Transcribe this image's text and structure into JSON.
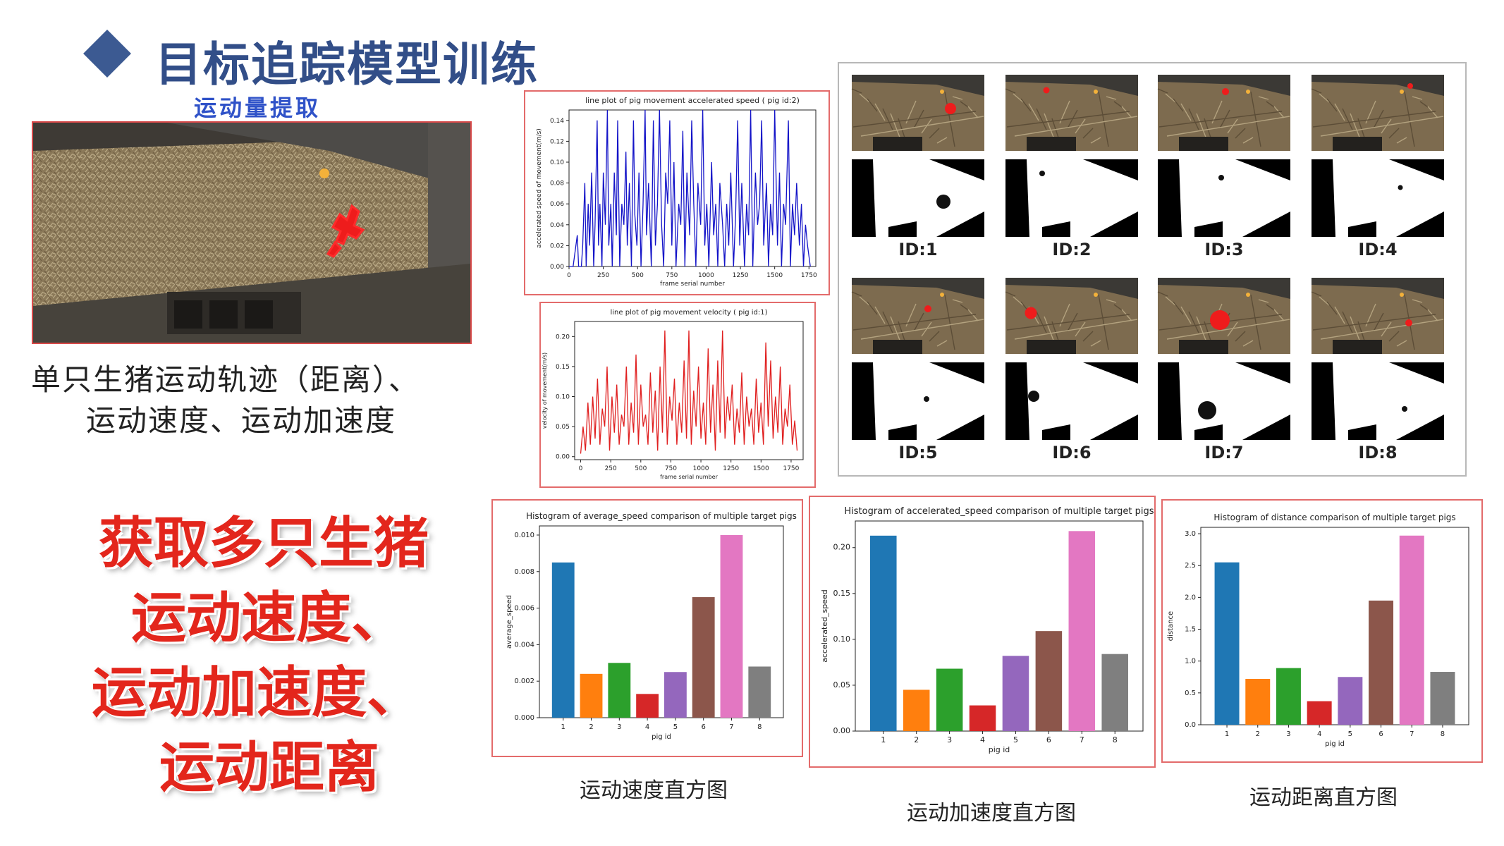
{
  "header": {
    "title": "目标追踪模型训练",
    "subtitle": "运动量提取"
  },
  "left": {
    "caption_line1": "单只生猪运动轨迹（距离）、",
    "caption_line2": "运动速度、运动加速度",
    "highlight_lines": [
      "获取多只生猪",
      "运动速度、",
      "运动加速度、",
      "运动距离"
    ]
  },
  "id_grid": {
    "labels": [
      "ID:1",
      "ID:2",
      "ID:3",
      "ID:4",
      "ID:5",
      "ID:6",
      "ID:7",
      "ID:8"
    ]
  },
  "captions": {
    "avg_speed": "运动速度直方图",
    "acc_speed": "运动加速度直方图",
    "distance": "运动距离直方图"
  },
  "colors": {
    "title": "#324e88",
    "highlight": "#e3261c",
    "panel_border": "#e36b6b",
    "bars": [
      "#1f77b4",
      "#ff7f0e",
      "#2ca02c",
      "#d62728",
      "#9467bd",
      "#8c564b",
      "#e377c2",
      "#7f7f7f"
    ]
  },
  "chart_data": [
    {
      "type": "line",
      "title": "line plot of pig movement accelerated speed ( pig id:2)",
      "xlabel": "frame serial number",
      "ylabel": "accelerated speed of movement(m/s)",
      "xlim": [
        0,
        1800
      ],
      "ylim": [
        0,
        0.15
      ],
      "xticks": [
        0,
        250,
        500,
        750,
        1000,
        1250,
        1500,
        1750
      ],
      "yticks": [
        0.0,
        0.02,
        0.04,
        0.06,
        0.08,
        0.1,
        0.12,
        0.14
      ],
      "ytick_labels": [
        "0.00",
        "0.02",
        "0.04",
        "0.06",
        "0.08",
        "0.10",
        "0.12",
        "0.14"
      ],
      "color": "#1414c8",
      "x": [
        0,
        30,
        60,
        70,
        90,
        100,
        115,
        125,
        140,
        150,
        165,
        180,
        190,
        205,
        215,
        225,
        240,
        250,
        265,
        280,
        290,
        305,
        315,
        330,
        345,
        355,
        370,
        385,
        400,
        415,
        425,
        440,
        455,
        470,
        480,
        495,
        510,
        525,
        540,
        555,
        565,
        580,
        600,
        615,
        630,
        645,
        660,
        675,
        690,
        705,
        720,
        735,
        750,
        765,
        780,
        800,
        815,
        830,
        845,
        860,
        880,
        895,
        910,
        925,
        940,
        960,
        975,
        990,
        1005,
        1020,
        1040,
        1055,
        1070,
        1085,
        1100,
        1120,
        1135,
        1150,
        1165,
        1180,
        1200,
        1215,
        1230,
        1245,
        1260,
        1280,
        1295,
        1310,
        1325,
        1340,
        1360,
        1375,
        1390,
        1405,
        1420,
        1440,
        1455,
        1470,
        1485,
        1500,
        1520,
        1535,
        1550,
        1565,
        1580,
        1600,
        1615,
        1630,
        1645,
        1660,
        1680,
        1695,
        1710,
        1725,
        1740,
        1760
      ],
      "y": [
        0.0,
        0.0,
        0.03,
        0.0,
        0.0,
        0.02,
        0.08,
        0.0,
        0.06,
        0.02,
        0.09,
        0.0,
        0.04,
        0.14,
        0.02,
        0.06,
        0.0,
        0.09,
        0.04,
        0.15,
        0.02,
        0.06,
        0.0,
        0.09,
        0.03,
        0.14,
        0.0,
        0.06,
        0.04,
        0.11,
        0.02,
        0.08,
        0.0,
        0.14,
        0.05,
        0.02,
        0.09,
        0.0,
        0.06,
        0.15,
        0.03,
        0.08,
        0.0,
        0.14,
        0.02,
        0.06,
        0.15,
        0.04,
        0.0,
        0.09,
        0.06,
        0.14,
        0.02,
        0.1,
        0.0,
        0.06,
        0.04,
        0.13,
        0.0,
        0.09,
        0.03,
        0.14,
        0.06,
        0.0,
        0.08,
        0.04,
        0.15,
        0.02,
        0.06,
        0.0,
        0.1,
        0.03,
        0.06,
        0.0,
        0.08,
        0.04,
        0.0,
        0.06,
        0.02,
        0.09,
        0.0,
        0.05,
        0.14,
        0.02,
        0.08,
        0.0,
        0.06,
        0.03,
        0.15,
        0.0,
        0.09,
        0.04,
        0.06,
        0.14,
        0.02,
        0.08,
        0.0,
        0.06,
        0.03,
        0.15,
        0.02,
        0.09,
        0.0,
        0.06,
        0.04,
        0.14,
        0.0,
        0.06,
        0.03,
        0.08,
        0.02,
        0.06,
        0.0,
        0.04,
        0.02,
        0.0
      ]
    },
    {
      "type": "line",
      "title": "line plot of pig movement velocity ( pig id:1)",
      "xlabel": "frame serial number",
      "ylabel": "velocity of movement(m/s)",
      "xlim": [
        -50,
        1850
      ],
      "ylim": [
        -0.005,
        0.225
      ],
      "xticks": [
        0,
        250,
        500,
        750,
        1000,
        1250,
        1500,
        1750
      ],
      "yticks": [
        0.0,
        0.05,
        0.1,
        0.15,
        0.2
      ],
      "ytick_labels": [
        "0.00",
        "0.05",
        "0.10",
        "0.15",
        "0.20"
      ],
      "color": "#e02020",
      "x": [
        0,
        20,
        40,
        60,
        80,
        100,
        120,
        140,
        160,
        180,
        200,
        220,
        240,
        260,
        280,
        300,
        320,
        340,
        360,
        380,
        400,
        420,
        440,
        460,
        480,
        500,
        520,
        540,
        560,
        580,
        600,
        620,
        640,
        660,
        680,
        700,
        720,
        740,
        760,
        780,
        800,
        820,
        840,
        860,
        880,
        900,
        920,
        940,
        960,
        980,
        1000,
        1020,
        1040,
        1060,
        1080,
        1100,
        1120,
        1140,
        1160,
        1180,
        1200,
        1220,
        1240,
        1260,
        1280,
        1300,
        1320,
        1340,
        1360,
        1380,
        1400,
        1420,
        1440,
        1460,
        1480,
        1500,
        1520,
        1540,
        1560,
        1580,
        1600,
        1620,
        1640,
        1660,
        1680,
        1700,
        1720,
        1740,
        1760,
        1780,
        1800
      ],
      "y": [
        0.005,
        0.05,
        0.01,
        0.09,
        0.02,
        0.1,
        0.03,
        0.13,
        0.02,
        0.08,
        0.05,
        0.15,
        0.01,
        0.1,
        0.04,
        0.12,
        0.02,
        0.07,
        0.05,
        0.15,
        0.02,
        0.09,
        0.04,
        0.17,
        0.02,
        0.12,
        0.05,
        0.07,
        0.02,
        0.14,
        0.04,
        0.11,
        0.01,
        0.15,
        0.04,
        0.21,
        0.02,
        0.1,
        0.06,
        0.13,
        0.02,
        0.09,
        0.04,
        0.16,
        0.03,
        0.21,
        0.02,
        0.11,
        0.05,
        0.15,
        0.03,
        0.09,
        0.02,
        0.18,
        0.04,
        0.12,
        0.01,
        0.16,
        0.04,
        0.21,
        0.03,
        0.1,
        0.06,
        0.12,
        0.02,
        0.08,
        0.04,
        0.14,
        0.02,
        0.1,
        0.05,
        0.08,
        0.02,
        0.13,
        0.04,
        0.09,
        0.02,
        0.19,
        0.05,
        0.16,
        0.03,
        0.1,
        0.04,
        0.15,
        0.02,
        0.08,
        0.05,
        0.12,
        0.02,
        0.06,
        0.01
      ]
    },
    {
      "type": "bar",
      "title": "Histogram of average_speed comparison of multiple target pigs",
      "xlabel": "pig id",
      "ylabel": "average_speed",
      "categories": [
        "1",
        "2",
        "3",
        "4",
        "5",
        "6",
        "7",
        "8"
      ],
      "values": [
        0.0085,
        0.0024,
        0.003,
        0.0013,
        0.0025,
        0.0066,
        0.01,
        0.0028
      ],
      "ylim": [
        0,
        0.0105
      ],
      "yticks": [
        0.0,
        0.002,
        0.004,
        0.006,
        0.008,
        0.01
      ],
      "ytick_labels": [
        "0.000",
        "0.002",
        "0.004",
        "0.006",
        "0.008",
        "0.010"
      ]
    },
    {
      "type": "bar",
      "title": "Histogram of accelerated_speed comparison of multiple target pigs",
      "xlabel": "pig id",
      "ylabel": "accelerated_speed",
      "categories": [
        "1",
        "2",
        "3",
        "4",
        "5",
        "6",
        "7",
        "8"
      ],
      "values": [
        0.213,
        0.045,
        0.068,
        0.028,
        0.082,
        0.109,
        0.218,
        0.084
      ],
      "ylim": [
        0,
        0.229
      ],
      "yticks": [
        0.0,
        0.05,
        0.1,
        0.15,
        0.2
      ],
      "ytick_labels": [
        "0.00",
        "0.05",
        "0.10",
        "0.15",
        "0.20"
      ]
    },
    {
      "type": "bar",
      "title": "Histogram of distance comparison of multiple target pigs",
      "xlabel": "pig id",
      "ylabel": "distance",
      "categories": [
        "1",
        "2",
        "3",
        "4",
        "5",
        "6",
        "7",
        "8"
      ],
      "values": [
        2.55,
        0.72,
        0.89,
        0.37,
        0.75,
        1.95,
        2.97,
        0.83
      ],
      "ylim": [
        0,
        3.1
      ],
      "yticks": [
        0.0,
        0.5,
        1.0,
        1.5,
        2.0,
        2.5,
        3.0
      ],
      "ytick_labels": [
        "0.0",
        "0.5",
        "1.0",
        "1.5",
        "2.0",
        "2.5",
        "3.0"
      ]
    }
  ]
}
